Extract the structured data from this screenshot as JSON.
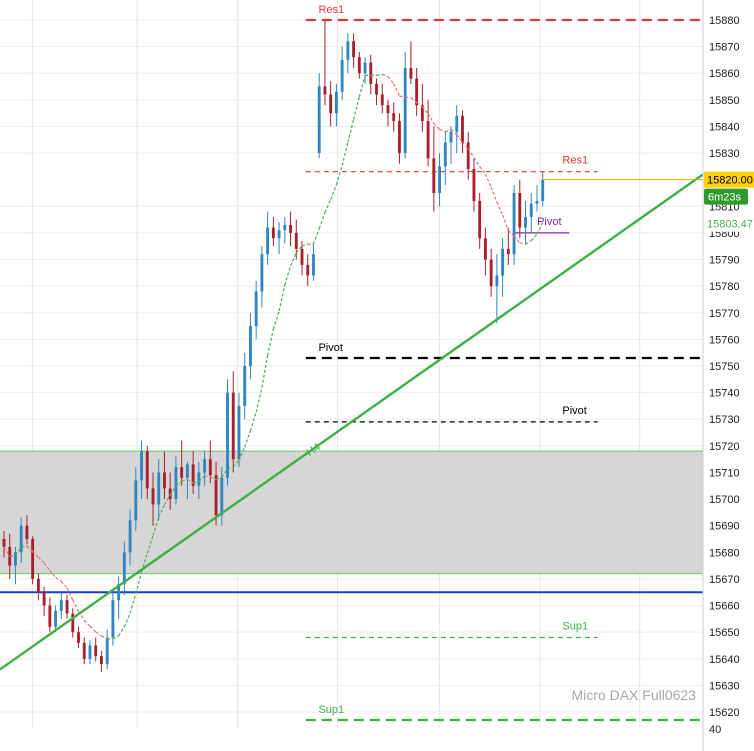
{
  "chart_data": {
    "type": "candlestick",
    "instrument": "Micro DAX Full0623",
    "ylim": [
      15614,
      15886
    ],
    "y_ticks": [
      15880,
      15870,
      15860,
      15850,
      15840,
      15830,
      15810,
      15800,
      15790,
      15780,
      15770,
      15760,
      15750,
      15740,
      15730,
      15720,
      15710,
      15700,
      15690,
      15680,
      15670,
      15660,
      15650,
      15640,
      15630,
      15620
    ],
    "bottom_axis_label": "40",
    "current_price": "15820.00",
    "countdown": "6m23s",
    "ma_value_label": "15803.47",
    "trendline_label": "H4",
    "levels": [
      {
        "label": "Res1",
        "price": 15880,
        "x_from": 0.435,
        "color": "#d93a3a",
        "style": "dash-long"
      },
      {
        "label": "Res1",
        "price": 15823,
        "x_from": 0.435,
        "x_to": 0.85,
        "color": "#d93a3a",
        "style": "dash-short"
      },
      {
        "label": "Pivot",
        "price": 15800,
        "x_from": 0.73,
        "x_to": 0.81,
        "color": "#8e24aa",
        "style": "solid"
      },
      {
        "label": "Pivot",
        "price": 15753,
        "x_from": 0.435,
        "color": "#000000",
        "style": "dash-long"
      },
      {
        "label": "Pivot",
        "price": 15729,
        "x_from": 0.435,
        "x_to": 0.85,
        "color": "#000000",
        "style": "dash-short"
      },
      {
        "label": "",
        "price": 15665,
        "x_from": 0.0,
        "color": "#1a3fcf",
        "style": "solid"
      },
      {
        "label": "Sup1",
        "price": 15648,
        "x_from": 0.435,
        "x_to": 0.85,
        "color": "#3cb043",
        "style": "dash-short"
      },
      {
        "label": "Sup1",
        "price": 15617,
        "x_from": 0.435,
        "color": "#3cb043",
        "style": "dash-long"
      }
    ],
    "zone": {
      "from": 15672,
      "to": 15718
    },
    "trendline": {
      "from": {
        "x": 0.0,
        "price": 15636
      },
      "to": {
        "x": 1.0,
        "price": 15822
      }
    },
    "candles": [
      [
        15685,
        15688,
        15678,
        15682
      ],
      [
        15682,
        15687,
        15670,
        15675
      ],
      [
        15675,
        15682,
        15668,
        15680
      ],
      [
        15680,
        15693,
        15676,
        15690
      ],
      [
        15690,
        15694,
        15683,
        15685
      ],
      [
        15685,
        15686,
        15668,
        15670
      ],
      [
        15670,
        15672,
        15662,
        15665
      ],
      [
        15665,
        15667,
        15656,
        15660
      ],
      [
        15660,
        15663,
        15650,
        15652
      ],
      [
        15652,
        15660,
        15650,
        15658
      ],
      [
        15658,
        15665,
        15655,
        15662
      ],
      [
        15662,
        15664,
        15655,
        15657
      ],
      [
        15657,
        15659,
        15648,
        15650
      ],
      [
        15650,
        15652,
        15644,
        15646
      ],
      [
        15646,
        15648,
        15638,
        15640
      ],
      [
        15640,
        15647,
        15638,
        15645
      ],
      [
        15645,
        15648,
        15639,
        15641
      ],
      [
        15641,
        15643,
        15635,
        15638
      ],
      [
        15638,
        15651,
        15636,
        15648
      ],
      [
        15648,
        15665,
        15645,
        15662
      ],
      [
        15662,
        15671,
        15655,
        15668
      ],
      [
        15668,
        15684,
        15664,
        15680
      ],
      [
        15680,
        15696,
        15675,
        15692
      ],
      [
        15692,
        15712,
        15688,
        15707
      ],
      [
        15707,
        15722,
        15700,
        15718
      ],
      [
        15718,
        15720,
        15700,
        15704
      ],
      [
        15704,
        15710,
        15690,
        15698
      ],
      [
        15698,
        15715,
        15692,
        15710
      ],
      [
        15710,
        15718,
        15700,
        15704
      ],
      [
        15704,
        15710,
        15696,
        15700
      ],
      [
        15700,
        15716,
        15698,
        15712
      ],
      [
        15712,
        15722,
        15705,
        15708
      ],
      [
        15708,
        15714,
        15700,
        15713
      ],
      [
        15713,
        15718,
        15702,
        15705
      ],
      [
        15705,
        15714,
        15700,
        15710
      ],
      [
        15710,
        15718,
        15705,
        15715
      ],
      [
        15715,
        15722,
        15706,
        15709
      ],
      [
        15709,
        15714,
        15690,
        15694
      ],
      [
        15694,
        15712,
        15690,
        15708
      ],
      [
        15708,
        15745,
        15705,
        15740
      ],
      [
        15740,
        15748,
        15710,
        15715
      ],
      [
        15715,
        15740,
        15712,
        15735
      ],
      [
        15735,
        15755,
        15730,
        15750
      ],
      [
        15750,
        15770,
        15745,
        15765
      ],
      [
        15765,
        15782,
        15760,
        15778
      ],
      [
        15778,
        15795,
        15772,
        15792
      ],
      [
        15792,
        15808,
        15788,
        15802
      ],
      [
        15802,
        15806,
        15795,
        15798
      ],
      [
        15798,
        15804,
        15792,
        15801
      ],
      [
        15801,
        15806,
        15796,
        15803
      ],
      [
        15803,
        15808,
        15795,
        15800
      ],
      [
        15800,
        15805,
        15790,
        15794
      ],
      [
        15794,
        15797,
        15784,
        15788
      ],
      [
        15788,
        15792,
        15780,
        15784
      ],
      [
        15784,
        15796,
        15782,
        15792
      ],
      [
        15830,
        15860,
        15828,
        15855
      ],
      [
        15855,
        15880,
        15848,
        15852
      ],
      [
        15852,
        15857,
        15840,
        15845
      ],
      [
        15845,
        15856,
        15840,
        15853
      ],
      [
        15853,
        15870,
        15850,
        15865
      ],
      [
        15865,
        15875,
        15860,
        15872
      ],
      [
        15872,
        15875,
        15862,
        15866
      ],
      [
        15866,
        15868,
        15858,
        15860
      ],
      [
        15860,
        15866,
        15856,
        15864
      ],
      [
        15864,
        15867,
        15852,
        15856
      ],
      [
        15856,
        15858,
        15848,
        15852
      ],
      [
        15852,
        15856,
        15845,
        15848
      ],
      [
        15848,
        15850,
        15840,
        15845
      ],
      [
        15845,
        15849,
        15838,
        15842
      ],
      [
        15842,
        15845,
        15826,
        15830
      ],
      [
        15830,
        15868,
        15828,
        15862
      ],
      [
        15862,
        15872,
        15856,
        15858
      ],
      [
        15858,
        15862,
        15844,
        15848
      ],
      [
        15848,
        15856,
        15838,
        15842
      ],
      [
        15842,
        15850,
        15825,
        15828
      ],
      [
        15828,
        15840,
        15808,
        15815
      ],
      [
        15815,
        15830,
        15810,
        15825
      ],
      [
        15825,
        15838,
        15818,
        15834
      ],
      [
        15834,
        15840,
        15826,
        15838
      ],
      [
        15838,
        15848,
        15830,
        15844
      ],
      [
        15844,
        15846,
        15830,
        15834
      ],
      [
        15834,
        15838,
        15820,
        15824
      ],
      [
        15824,
        15828,
        15808,
        15812
      ],
      [
        15812,
        15815,
        15794,
        15798
      ],
      [
        15798,
        15802,
        15784,
        15790
      ],
      [
        15790,
        15794,
        15776,
        15780
      ],
      [
        15780,
        15792,
        15766,
        15784
      ],
      [
        15784,
        15798,
        15776,
        15794
      ],
      [
        15794,
        15802,
        15788,
        15792
      ],
      [
        15792,
        15818,
        15788,
        15815
      ],
      [
        15815,
        15820,
        15798,
        15802
      ],
      [
        15802,
        15812,
        15796,
        15806
      ],
      [
        15806,
        15815,
        15800,
        15811
      ],
      [
        15811,
        15818,
        15808,
        15812
      ],
      [
        15812,
        15823,
        15810,
        15820
      ]
    ],
    "colors": {
      "up": "#2e86c1",
      "down": "#a8202c",
      "ma": "#4caf50",
      "ma_bear": "#e57373"
    }
  }
}
